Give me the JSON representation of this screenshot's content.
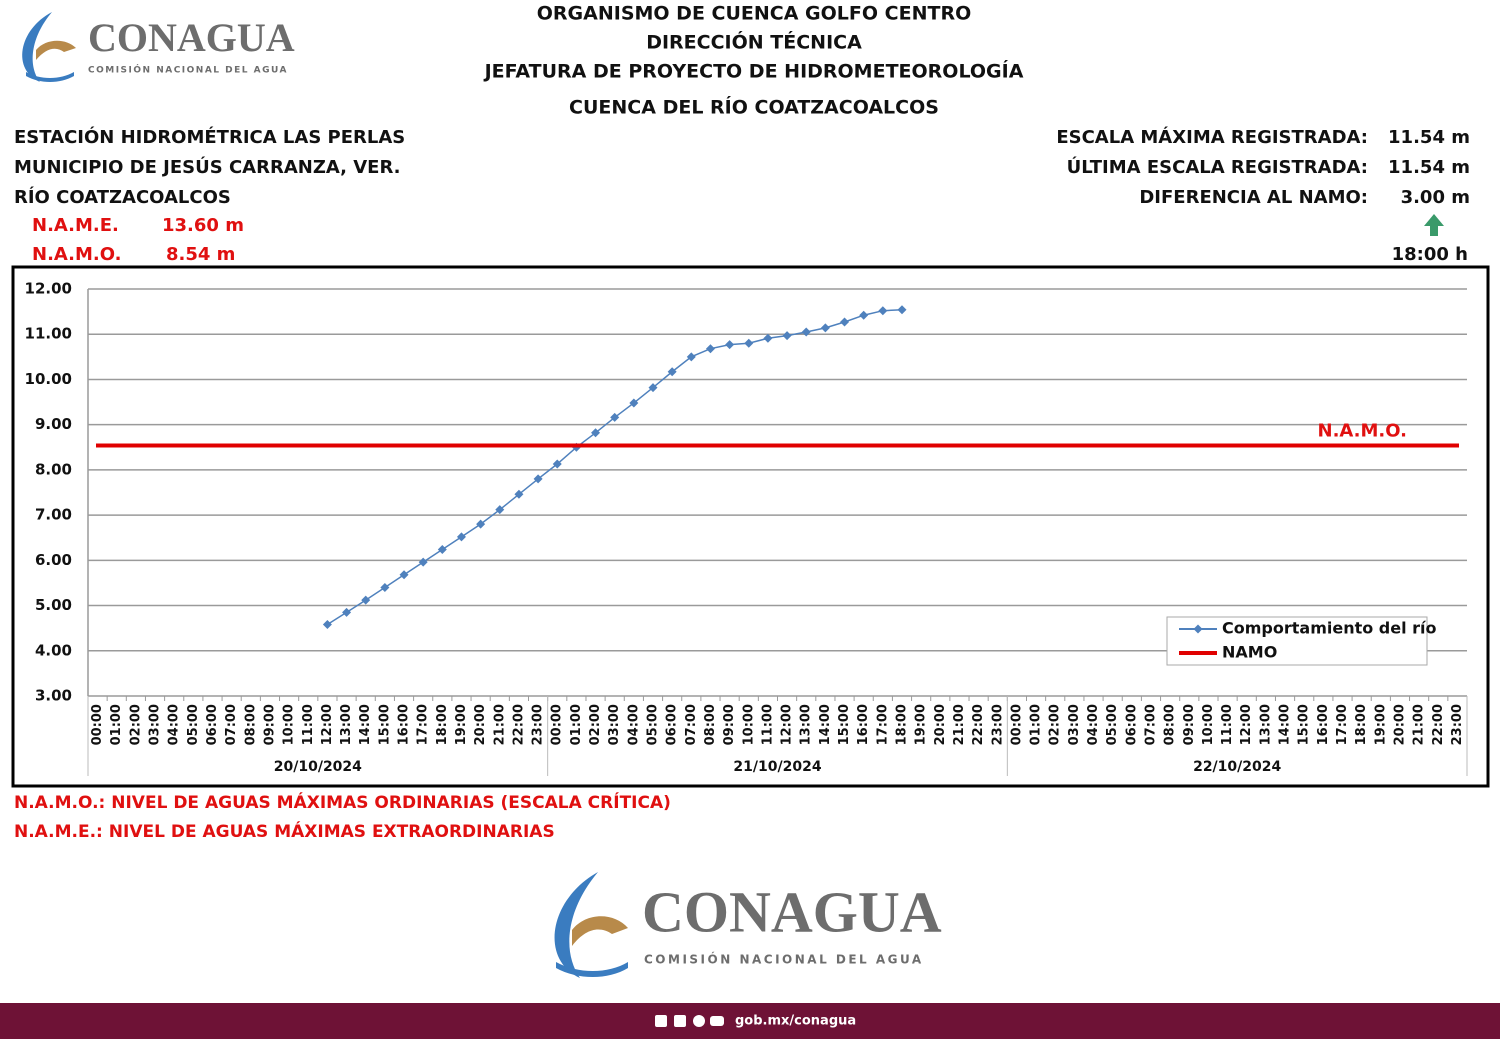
{
  "header": {
    "brand": "CONAGUA",
    "brand_sub": "COMISIÓN NACIONAL DEL AGUA",
    "title_lines": [
      "ORGANISMO DE CUENCA GOLFO CENTRO",
      "DIRECCIÓN TÉCNICA",
      "JEFATURA DE PROYECTO DE HIDROMETEOROLOGÍA",
      "CUENCA DEL RÍO COATZACOALCOS"
    ],
    "station_lines": [
      "ESTACIÓN HIDROMÉTRICA LAS PERLAS",
      "MUNICIPIO DE JESÚS CARRANZA, VER.",
      "RÍO COATZACOALCOS"
    ],
    "levels": [
      {
        "label": "N.A.M.E.",
        "value": "13.60 m"
      },
      {
        "label": "N.A.M.O.",
        "value": "8.54 m"
      }
    ],
    "stats": [
      {
        "label": "ESCALA MÁXIMA REGISTRADA:",
        "value": "11.54 m"
      },
      {
        "label": "ÚLTIMA ESCALA REGISTRADA:",
        "value": "11.54 m"
      },
      {
        "label": "DIFERENCIA AL NAMO:",
        "value": "3.00 m"
      }
    ],
    "time": "18:00 h"
  },
  "chart_data": {
    "type": "line",
    "categories": [
      "00:00",
      "01:00",
      "02:00",
      "03:00",
      "04:00",
      "05:00",
      "06:00",
      "07:00",
      "08:00",
      "09:00",
      "10:00",
      "11:00",
      "12:00",
      "13:00",
      "14:00",
      "15:00",
      "16:00",
      "17:00",
      "18:00",
      "19:00",
      "20:00",
      "21:00",
      "22:00",
      "23:00",
      "00:00",
      "01:00",
      "02:00",
      "03:00",
      "04:00",
      "05:00",
      "06:00",
      "07:00",
      "08:00",
      "09:00",
      "10:00",
      "11:00",
      "12:00",
      "13:00",
      "14:00",
      "15:00",
      "16:00",
      "17:00",
      "18:00",
      "19:00",
      "20:00",
      "21:00",
      "22:00",
      "23:00",
      "00:00",
      "01:00",
      "02:00",
      "03:00",
      "04:00",
      "05:00",
      "06:00",
      "07:00",
      "08:00",
      "09:00",
      "10:00",
      "11:00",
      "12:00",
      "13:00",
      "14:00",
      "15:00",
      "16:00",
      "17:00",
      "18:00",
      "19:00",
      "20:00",
      "21:00",
      "22:00",
      "23:00"
    ],
    "groups": [
      "20/10/2024",
      "21/10/2024",
      "22/10/2024"
    ],
    "series": [
      {
        "name": "Comportamiento del río",
        "color": "#4f81bd",
        "marker": true,
        "values": [
          null,
          null,
          null,
          null,
          null,
          null,
          null,
          null,
          null,
          null,
          null,
          null,
          4.58,
          4.85,
          5.12,
          5.4,
          5.68,
          5.96,
          6.24,
          6.52,
          6.8,
          7.12,
          7.46,
          7.8,
          8.13,
          8.5,
          8.82,
          9.16,
          9.48,
          9.82,
          10.17,
          10.5,
          10.68,
          10.77,
          10.8,
          10.91,
          10.97,
          11.05,
          11.14,
          11.27,
          11.42,
          11.52,
          11.54,
          null,
          null,
          null,
          null,
          null,
          null,
          null,
          null,
          null,
          null,
          null,
          null,
          null,
          null,
          null,
          null,
          null,
          null,
          null,
          null,
          null,
          null,
          null,
          null,
          null,
          null,
          null,
          null,
          null
        ]
      },
      {
        "name": "NAMO",
        "color": "#e00000",
        "marker": false,
        "values": [
          8.54,
          8.54,
          8.54,
          8.54,
          8.54,
          8.54,
          8.54,
          8.54,
          8.54,
          8.54,
          8.54,
          8.54,
          8.54,
          8.54,
          8.54,
          8.54,
          8.54,
          8.54,
          8.54,
          8.54,
          8.54,
          8.54,
          8.54,
          8.54,
          8.54,
          8.54,
          8.54,
          8.54,
          8.54,
          8.54,
          8.54,
          8.54,
          8.54,
          8.54,
          8.54,
          8.54,
          8.54,
          8.54,
          8.54,
          8.54,
          8.54,
          8.54,
          8.54,
          8.54,
          8.54,
          8.54,
          8.54,
          8.54,
          8.54,
          8.54,
          8.54,
          8.54,
          8.54,
          8.54,
          8.54,
          8.54,
          8.54,
          8.54,
          8.54,
          8.54,
          8.54,
          8.54,
          8.54,
          8.54,
          8.54,
          8.54,
          8.54,
          8.54,
          8.54,
          8.54,
          8.54,
          8.54
        ]
      }
    ],
    "annotation": "N.A.M.O.",
    "ylim": [
      3,
      12
    ],
    "yticks": [
      {
        "value": 3,
        "label": "3.00"
      },
      {
        "value": 4,
        "label": "4.00"
      },
      {
        "value": 5,
        "label": "5.00"
      },
      {
        "value": 6,
        "label": "6.00"
      },
      {
        "value": 7,
        "label": "7.00"
      },
      {
        "value": 8,
        "label": "8.00"
      },
      {
        "value": 9,
        "label": "9.00"
      },
      {
        "value": 10,
        "label": "10.00"
      },
      {
        "value": 11,
        "label": "11.00"
      },
      {
        "value": 12,
        "label": "12.00"
      }
    ],
    "grid": true,
    "legend": "lower right"
  },
  "notes": [
    "N.A.M.O.: NIVEL DE AGUAS MÁXIMAS ORDINARIAS (ESCALA CRÍTICA)",
    "N.A.M.E.: NIVEL DE AGUAS MÁXIMAS EXTRAORDINARIAS"
  ],
  "footer": {
    "url": "gob.mx/conagua"
  }
}
